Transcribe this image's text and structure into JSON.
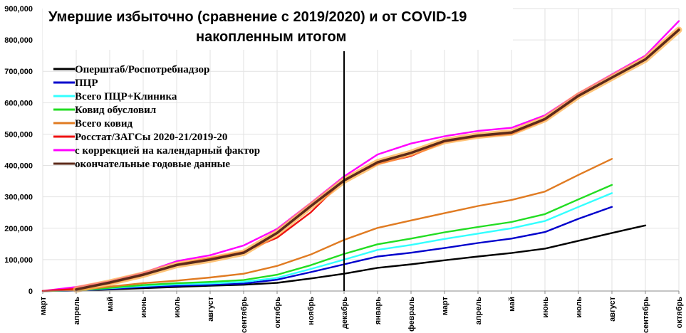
{
  "chart_data": {
    "type": "line",
    "title": "Умершие избыточно (сравнение с 2019/2020)  и от COVID-19",
    "subtitle": "накопленным итогом",
    "categories": [
      "март",
      "апрель",
      "май",
      "июнь",
      "июль",
      "август",
      "сентябрь",
      "октябрь",
      "ноябрь",
      "декабрь",
      "январь",
      "февраль",
      "март",
      "апрель",
      "май",
      "июнь",
      "июль",
      "август",
      "сентябрь",
      "октябрь"
    ],
    "y_ticks": [
      "0",
      "100,000",
      "200,000",
      "300,000",
      "400,000",
      "500,000",
      "600,000",
      "700,000",
      "800,000",
      "900,000"
    ],
    "ylim": [
      0,
      900000
    ],
    "vline_category": "декабрь",
    "legend_position": "top-left",
    "series": [
      {
        "name": "Оперштаб/Роспотребнадзор",
        "color": "#000000",
        "values": [
          0,
          1500,
          5000,
          9000,
          13000,
          17000,
          20000,
          26000,
          40000,
          55000,
          74000,
          85000,
          98000,
          110000,
          121000,
          135000,
          160000,
          185000,
          209000,
          null
        ]
      },
      {
        "name": "ПЦР",
        "color": "#0000cc",
        "values": [
          0,
          1500,
          7000,
          13000,
          17000,
          20000,
          24000,
          36000,
          60000,
          85000,
          110000,
          122000,
          137000,
          153000,
          167000,
          188000,
          230000,
          268000,
          null,
          null
        ]
      },
      {
        "name": "Всего ПЦР+Клиника",
        "color": "#33ffff",
        "values": [
          0,
          2000,
          9000,
          16000,
          21000,
          24000,
          29000,
          42000,
          70000,
          100000,
          131000,
          147000,
          166000,
          183000,
          200000,
          223000,
          268000,
          312000,
          null,
          null
        ]
      },
      {
        "name": "Ковид обусловил",
        "color": "#22dd22",
        "values": [
          0,
          2000,
          10000,
          19000,
          25000,
          29000,
          35000,
          52000,
          82000,
          118000,
          149000,
          167000,
          187000,
          204000,
          220000,
          245000,
          292000,
          338000,
          null,
          null
        ]
      },
      {
        "name": "Всего ковид",
        "color": "#e07b22",
        "values": [
          0,
          3000,
          14000,
          25000,
          33000,
          43000,
          55000,
          80000,
          116000,
          163000,
          201000,
          225000,
          248000,
          271000,
          290000,
          317000,
          370000,
          421000,
          null,
          null
        ]
      },
      {
        "name": "Росстат/ЗАГСы 2020-21/2019-20",
        "color": "#ee1111",
        "values": [
          0,
          7000,
          24000,
          50000,
          85000,
          105000,
          125000,
          170000,
          250000,
          355000,
          405000,
          430000,
          475000,
          492000,
          500000,
          545000,
          620000,
          680000,
          740000,
          835000
        ]
      },
      {
        "name": "с коррекцией на календарный фактор",
        "color": "#ff00ff",
        "values": [
          0,
          13000,
          31000,
          58000,
          95000,
          114000,
          145000,
          198000,
          280000,
          365000,
          435000,
          470000,
          493000,
          510000,
          520000,
          560000,
          630000,
          690000,
          750000,
          860000
        ]
      },
      {
        "name": "окончательные годовые данные",
        "color": "#5c2a1a",
        "values": [
          null,
          5000,
          27000,
          52000,
          83000,
          100000,
          122000,
          185000,
          270000,
          352000,
          410000,
          440000,
          478000,
          495000,
          505000,
          548000,
          622000,
          680000,
          738000,
          832000
        ]
      }
    ]
  }
}
